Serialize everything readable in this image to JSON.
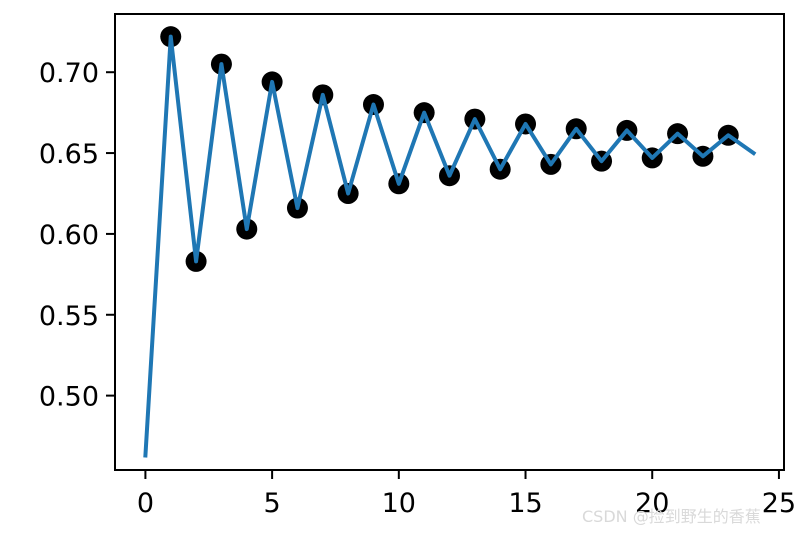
{
  "chart_data": {
    "type": "line",
    "title": "",
    "xlabel": "",
    "ylabel": "",
    "xlim": [
      -1.2,
      25.2
    ],
    "ylim": [
      0.454,
      0.736
    ],
    "xticks": [
      0,
      5,
      10,
      15,
      20,
      25
    ],
    "xtick_labels": [
      "0",
      "5",
      "10",
      "15",
      "20",
      "25"
    ],
    "yticks": [
      0.5,
      0.55,
      0.6,
      0.65,
      0.7
    ],
    "ytick_labels": [
      "0.50",
      "0.55",
      "0.60",
      "0.65",
      "0.70"
    ],
    "grid": false,
    "legend": "none",
    "series": [
      {
        "kind": "line",
        "color": "#1f77b4",
        "x": [
          0,
          1,
          2,
          3,
          4,
          5,
          6,
          7,
          8,
          9,
          10,
          11,
          12,
          13,
          14,
          15,
          16,
          17,
          18,
          19,
          20,
          21,
          22,
          23,
          24
        ],
        "y": [
          0.463,
          0.722,
          0.583,
          0.705,
          0.603,
          0.694,
          0.616,
          0.686,
          0.625,
          0.68,
          0.631,
          0.675,
          0.636,
          0.671,
          0.64,
          0.668,
          0.643,
          0.665,
          0.645,
          0.664,
          0.647,
          0.662,
          0.648,
          0.661,
          0.65
        ]
      },
      {
        "kind": "scatter",
        "color": "#000000",
        "x": [
          1,
          2,
          3,
          4,
          5,
          6,
          7,
          8,
          9,
          10,
          11,
          12,
          13,
          14,
          15,
          16,
          17,
          18,
          19,
          20,
          21,
          22,
          23
        ],
        "y": [
          0.722,
          0.583,
          0.705,
          0.603,
          0.694,
          0.616,
          0.686,
          0.625,
          0.68,
          0.631,
          0.675,
          0.636,
          0.671,
          0.64,
          0.668,
          0.643,
          0.665,
          0.645,
          0.664,
          0.647,
          0.662,
          0.648,
          0.661
        ]
      }
    ]
  },
  "watermark": {
    "text": "CSDN @捡到野生的香蕉"
  }
}
